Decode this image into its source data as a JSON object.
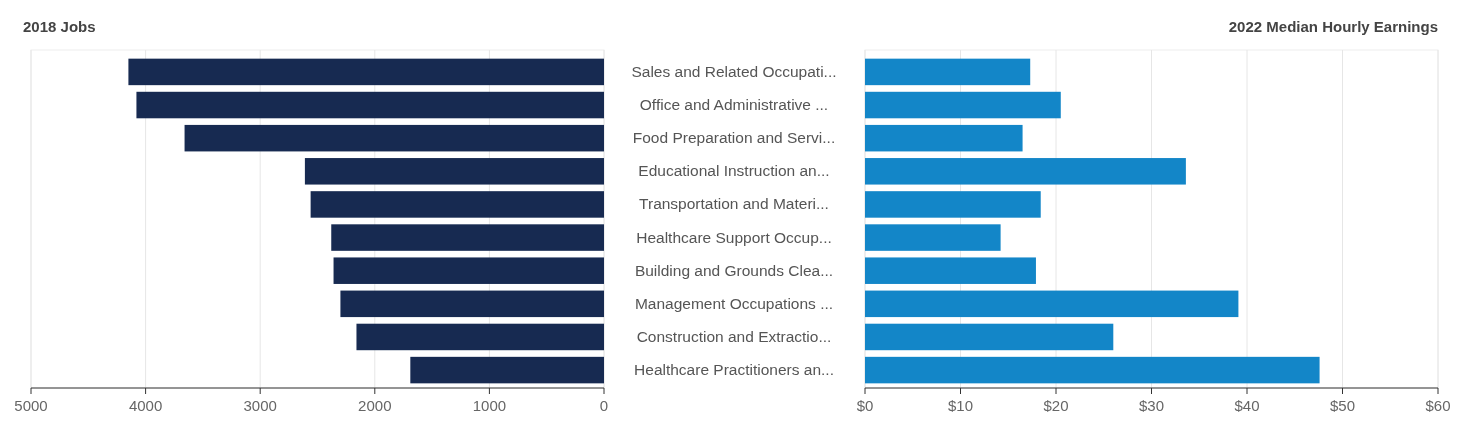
{
  "chart_data": [
    {
      "type": "bar",
      "orientation": "horizontal",
      "title": "2018 Jobs",
      "categories": [
        "Sales and Related Occupati...",
        "Office and Administrative ...",
        "Food Preparation and Servi...",
        "Educational Instruction an...",
        "Transportation and Materi...",
        "Healthcare Support Occup...",
        "Building and Grounds Clea...",
        "Management Occupations ...",
        "Construction and Extractio...",
        "Healthcare Practitioners an..."
      ],
      "values": [
        4150,
        4080,
        3660,
        2610,
        2560,
        2380,
        2360,
        2300,
        2160,
        1690
      ],
      "color": "#172a51",
      "xlim": [
        5000,
        0
      ],
      "xticks": [
        5000,
        4000,
        3000,
        2000,
        1000,
        0
      ],
      "grid": "x"
    },
    {
      "type": "bar",
      "orientation": "horizontal",
      "title": "2022 Median Hourly Earnings",
      "categories": [
        null,
        null,
        null,
        null,
        null,
        null,
        null,
        null,
        null,
        null
      ],
      "values": [
        17.3,
        20.5,
        16.5,
        33.6,
        18.4,
        14.2,
        17.9,
        39.1,
        26.0,
        47.6
      ],
      "color": "#1386c8",
      "xlim": [
        0,
        60
      ],
      "xticks": [
        {
          "value": 0,
          "label": "$0"
        },
        {
          "value": 10,
          "label": "$10"
        },
        {
          "value": 20,
          "label": "$20"
        },
        {
          "value": 30,
          "label": "$30"
        },
        {
          "value": 40,
          "label": "$40"
        },
        {
          "value": 50,
          "label": "$50"
        },
        {
          "value": 60,
          "label": "$60"
        }
      ],
      "grid": "x",
      "tick_labels": "x"
    }
  ]
}
